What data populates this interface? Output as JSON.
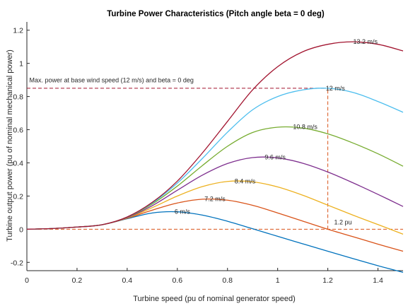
{
  "chart_data": {
    "type": "line",
    "title": "Turbine Power Characteristics (Pitch angle beta = 0 deg)",
    "xlabel": "Turbine speed (pu of nominal generator speed)",
    "ylabel": "Turbine output power (pu of nominal mechanical power)",
    "xlim": [
      0,
      1.5
    ],
    "ylim": [
      -0.25,
      1.25
    ],
    "x_ticks": [
      "0",
      "0.2",
      "0.4",
      "0.6",
      "0.8",
      "1",
      "1.2",
      "1.4"
    ],
    "y_ticks": [
      "-0.2",
      "0",
      "0.2",
      "0.4",
      "0.6",
      "0.8",
      "1",
      "1.2"
    ],
    "x_tick_values": [
      0,
      0.2,
      0.4,
      0.6,
      0.8,
      1.0,
      1.2,
      1.4
    ],
    "y_tick_values": [
      -0.2,
      0,
      0.2,
      0.4,
      0.6,
      0.8,
      1.0,
      1.2
    ],
    "grid": false,
    "series": [
      {
        "name": "6 m/s",
        "color": "#0072BD",
        "x": [
          0,
          0.1,
          0.2,
          0.3,
          0.4,
          0.5,
          0.6,
          0.7,
          0.8,
          0.9,
          1.0,
          1.1,
          1.2,
          1.3,
          1.4,
          1.5
        ],
        "y": [
          0,
          0.004,
          0.013,
          0.027,
          0.063,
          0.098,
          0.105,
          0.085,
          0.048,
          0.003,
          -0.043,
          -0.088,
          -0.133,
          -0.177,
          -0.22,
          -0.26
        ],
        "label_at": [
          0.62,
          0.105
        ]
      },
      {
        "name": "7.2 m/s",
        "color": "#D95319",
        "x": [
          0,
          0.1,
          0.2,
          0.3,
          0.4,
          0.5,
          0.6,
          0.7,
          0.8,
          0.9,
          1.0,
          1.1,
          1.2,
          1.3,
          1.4,
          1.5
        ],
        "y": [
          0,
          0.004,
          0.013,
          0.027,
          0.066,
          0.115,
          0.158,
          0.181,
          0.175,
          0.144,
          0.098,
          0.049,
          0.0,
          -0.045,
          -0.09,
          -0.133
        ],
        "label_at": [
          0.75,
          0.183
        ]
      },
      {
        "name": "8.4 m/s",
        "color": "#EDB120",
        "x": [
          0,
          0.1,
          0.2,
          0.3,
          0.4,
          0.5,
          0.6,
          0.7,
          0.8,
          0.9,
          1.0,
          1.1,
          1.2,
          1.3,
          1.4,
          1.5
        ],
        "y": [
          0,
          0.004,
          0.013,
          0.027,
          0.068,
          0.13,
          0.2,
          0.257,
          0.288,
          0.286,
          0.255,
          0.205,
          0.145,
          0.085,
          0.028,
          -0.03
        ],
        "label_at": [
          0.87,
          0.289
        ]
      },
      {
        "name": "9.6 m/s",
        "color": "#7E2F8E",
        "x": [
          0,
          0.1,
          0.2,
          0.3,
          0.4,
          0.5,
          0.6,
          0.7,
          0.8,
          0.9,
          1.0,
          1.1,
          1.2,
          1.3,
          1.4,
          1.5
        ],
        "y": [
          0,
          0.004,
          0.013,
          0.027,
          0.07,
          0.142,
          0.235,
          0.326,
          0.396,
          0.432,
          0.43,
          0.398,
          0.345,
          0.28,
          0.21,
          0.137
        ],
        "label_at": [
          0.99,
          0.434
        ]
      },
      {
        "name": "10.8 m/s",
        "color": "#77AC30",
        "x": [
          0,
          0.1,
          0.2,
          0.3,
          0.4,
          0.5,
          0.6,
          0.7,
          0.8,
          0.9,
          1.0,
          1.1,
          1.2,
          1.3,
          1.4,
          1.5
        ],
        "y": [
          0,
          0.004,
          0.013,
          0.027,
          0.072,
          0.152,
          0.26,
          0.384,
          0.5,
          0.583,
          0.615,
          0.61,
          0.575,
          0.52,
          0.455,
          0.38
        ],
        "label_at": [
          1.11,
          0.618
        ]
      },
      {
        "name": "12 m/s",
        "color": "#4DBEEE",
        "x": [
          0,
          0.1,
          0.2,
          0.3,
          0.4,
          0.5,
          0.6,
          0.7,
          0.8,
          0.9,
          1.0,
          1.1,
          1.2,
          1.3,
          1.4,
          1.5
        ],
        "y": [
          0,
          0.004,
          0.013,
          0.027,
          0.073,
          0.158,
          0.278,
          0.427,
          0.585,
          0.72,
          0.8,
          0.84,
          0.85,
          0.825,
          0.77,
          0.705
        ],
        "label_at": [
          1.23,
          0.85
        ]
      },
      {
        "name": "13.2 m/s",
        "color": "#A2142F",
        "x": [
          0,
          0.1,
          0.2,
          0.3,
          0.4,
          0.5,
          0.6,
          0.7,
          0.8,
          0.9,
          1.0,
          1.1,
          1.2,
          1.3,
          1.4,
          1.5
        ],
        "y": [
          0,
          0.004,
          0.013,
          0.027,
          0.074,
          0.162,
          0.29,
          0.46,
          0.65,
          0.84,
          0.98,
          1.07,
          1.115,
          1.13,
          1.115,
          1.075
        ],
        "label_at": [
          1.35,
          1.13
        ]
      }
    ],
    "reference_lines": [
      {
        "type": "horizontal",
        "y": 0.85,
        "x_from": 0,
        "x_to": 1.2,
        "color": "#A2142F"
      },
      {
        "type": "horizontal",
        "y": 0,
        "x_from": 0,
        "x_to": 1.5,
        "color": "#D95319"
      },
      {
        "type": "vertical",
        "x": 1.2,
        "y_from": 0,
        "y_to": 0.85,
        "color": "#D95319"
      }
    ],
    "annotations": [
      {
        "text": "Max. power at base wind speed (12 m/s) and beta = 0 deg",
        "x": 0.01,
        "y": 0.885
      },
      {
        "text": "1.2 pu",
        "x": 1.225,
        "y": 0.03
      }
    ]
  }
}
